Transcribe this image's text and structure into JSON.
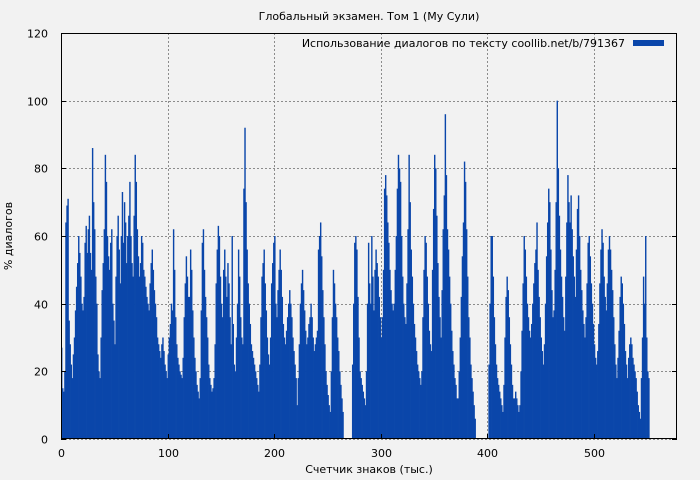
{
  "chart_data": {
    "type": "bar",
    "title": "Глобальный экзамен. Том 1 (Му Сули)",
    "xlabel": "Счетчик знаков (тыс.)",
    "ylabel": "% диалогов",
    "xlim": [
      0,
      578
    ],
    "ylim": [
      0,
      120
    ],
    "xticks": [
      "0",
      "100",
      "200",
      "300",
      "400",
      "500"
    ],
    "yticks": [
      "0",
      "20",
      "40",
      "60",
      "80",
      "100",
      "120"
    ],
    "grid": true,
    "legend_position": "top-right",
    "series": [
      {
        "name": "Использование диалогов по тексту coollib.net/b/791367",
        "color": "#0a46aa",
        "bin_width": 1,
        "values": [
          27,
          15,
          14,
          20,
          64,
          69,
          71,
          35,
          28,
          22,
          18,
          25,
          30,
          38,
          45,
          52,
          60,
          55,
          48,
          40,
          38,
          42,
          58,
          63,
          55,
          62,
          66,
          55,
          50,
          86,
          70,
          62,
          48,
          40,
          25,
          20,
          18,
          30,
          44,
          52,
          62,
          84,
          76,
          60,
          54,
          50,
          58,
          62,
          40,
          35,
          28,
          48,
          60,
          66,
          56,
          46,
          60,
          73,
          58,
          70,
          64,
          52,
          60,
          66,
          76,
          60,
          52,
          48,
          66,
          84,
          76,
          62,
          54,
          48,
          52,
          60,
          58,
          50,
          48,
          45,
          42,
          40,
          38,
          46,
          52,
          56,
          50,
          44,
          40,
          36,
          30,
          28,
          26,
          24,
          28,
          30,
          26,
          22,
          20,
          18,
          25,
          30,
          34,
          40,
          38,
          62,
          50,
          36,
          28,
          24,
          22,
          20,
          19,
          18,
          24,
          36,
          46,
          54,
          48,
          42,
          42,
          56,
          50,
          38,
          30,
          24,
          20,
          16,
          14,
          12,
          18,
          38,
          58,
          62,
          50,
          42,
          36,
          30,
          22,
          18,
          16,
          14,
          15,
          18,
          28,
          46,
          56,
          63,
          60,
          48,
          40,
          36,
          50,
          56,
          48,
          42,
          52,
          46,
          36,
          28,
          60,
          34,
          22,
          20,
          30,
          40,
          56,
          48,
          36,
          30,
          28,
          74,
          92,
          70,
          56,
          46,
          40,
          34,
          28,
          26,
          24,
          22,
          20,
          18,
          16,
          14,
          22,
          36,
          48,
          52,
          56,
          46,
          38,
          30,
          25,
          22,
          30,
          46,
          52,
          58,
          60,
          40,
          36,
          44,
          50,
          56,
          50,
          42,
          34,
          30,
          28,
          32,
          36,
          40,
          44,
          40,
          36,
          30,
          26,
          22,
          18,
          10,
          18,
          28,
          40,
          46,
          50,
          44,
          38,
          32,
          28,
          30,
          34,
          36,
          40,
          36,
          30,
          26,
          28,
          30,
          32,
          56,
          60,
          64,
          54,
          44,
          36,
          28,
          20,
          16,
          13,
          10,
          8,
          20,
          36,
          50,
          46,
          40,
          36,
          30,
          26,
          20,
          16,
          12,
          8,
          0,
          0,
          0,
          0,
          0,
          0,
          0,
          0,
          22,
          40,
          58,
          60,
          56,
          42,
          30,
          20,
          18,
          16,
          14,
          12,
          10,
          20,
          40,
          58,
          46,
          40,
          60,
          48,
          38,
          50,
          56,
          52,
          48,
          42,
          36,
          30,
          36,
          50,
          74,
          78,
          72,
          64,
          58,
          50,
          44,
          40,
          38,
          40,
          50,
          60,
          74,
          84,
          80,
          76,
          60,
          48,
          40,
          36,
          34,
          46,
          62,
          84,
          70,
          56,
          48,
          40,
          34,
          30,
          26,
          22,
          20,
          18,
          16,
          20,
          36,
          50,
          60,
          58,
          48,
          40,
          32,
          28,
          26,
          50,
          68,
          84,
          80,
          66,
          52,
          42,
          36,
          30,
          44,
          62,
          72,
          96,
          78,
          62,
          56,
          48,
          40,
          32,
          26,
          22,
          18,
          16,
          12,
          12,
          20,
          30,
          42,
          54,
          64,
          82,
          76,
          62,
          48,
          36,
          30,
          22,
          18,
          14,
          10,
          6,
          0,
          0,
          0,
          0,
          0,
          0,
          0,
          0,
          0,
          0,
          0,
          0,
          22,
          40,
          60,
          60,
          48,
          36,
          28,
          22,
          18,
          16,
          14,
          12,
          10,
          8,
          16,
          30,
          42,
          48,
          44,
          36,
          28,
          22,
          16,
          12,
          12,
          14,
          12,
          10,
          8,
          10,
          20,
          32,
          46,
          60,
          56,
          48,
          40,
          36,
          32,
          30,
          34,
          40,
          46,
          52,
          56,
          64,
          50,
          42,
          36,
          30,
          26,
          22,
          28,
          40,
          54,
          64,
          74,
          70,
          56,
          44,
          36,
          38,
          50,
          70,
          100,
          80,
          66,
          56,
          48,
          42,
          36,
          32,
          48,
          64,
          78,
          70,
          64,
          72,
          62,
          54,
          48,
          42,
          56,
          68,
          72,
          60,
          50,
          44,
          38,
          34,
          30,
          36,
          46,
          58,
          60,
          54,
          46,
          40,
          34,
          28,
          24,
          22,
          26,
          34,
          46,
          56,
          62,
          58,
          48,
          42,
          38,
          46,
          56,
          60,
          56,
          50,
          44,
          36,
          28,
          22,
          18,
          24,
          32,
          42,
          48,
          46,
          40,
          34,
          26,
          22,
          18,
          24,
          28,
          30,
          28,
          24,
          22,
          20,
          18,
          14,
          10,
          8,
          6,
          18,
          30,
          48,
          40,
          60,
          30,
          20,
          18
        ]
      }
    ]
  }
}
